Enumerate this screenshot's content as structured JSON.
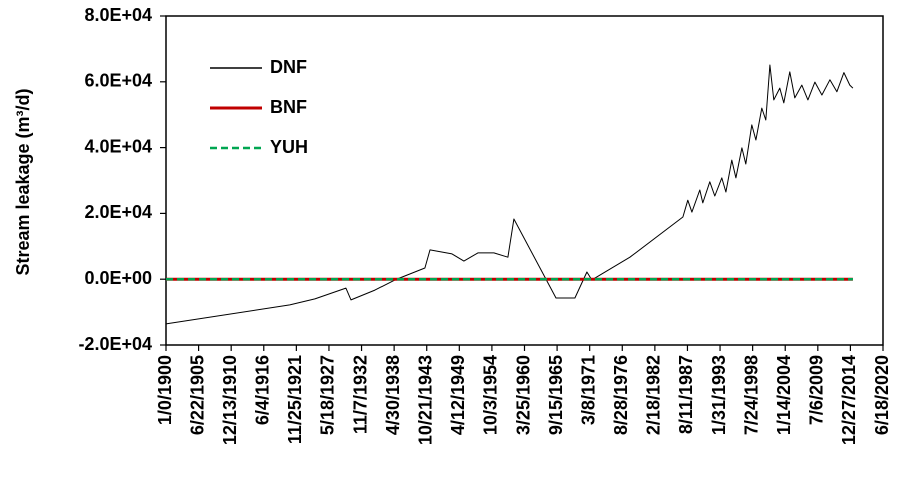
{
  "chart_data": {
    "type": "line",
    "y_label": "Stream leakage (m³/d)",
    "xlim": [
      0,
      44000
    ],
    "xticks": [
      {
        "value": 0,
        "label": "1/0/1900"
      },
      {
        "value": 2000,
        "label": "6/22/1905"
      },
      {
        "value": 4000,
        "label": "12/13/1910"
      },
      {
        "value": 6000,
        "label": "6/4/1916"
      },
      {
        "value": 8000,
        "label": "11/25/1921"
      },
      {
        "value": 10000,
        "label": "5/18/1927"
      },
      {
        "value": 12000,
        "label": "11/7/1932"
      },
      {
        "value": 14000,
        "label": "4/30/1938"
      },
      {
        "value": 16000,
        "label": "10/21/1943"
      },
      {
        "value": 18000,
        "label": "4/12/1949"
      },
      {
        "value": 20000,
        "label": "10/3/1954"
      },
      {
        "value": 22000,
        "label": "3/25/1960"
      },
      {
        "value": 24000,
        "label": "9/15/1965"
      },
      {
        "value": 26000,
        "label": "3/8/1971"
      },
      {
        "value": 28000,
        "label": "8/28/1976"
      },
      {
        "value": 30000,
        "label": "2/18/1982"
      },
      {
        "value": 32000,
        "label": "8/11/1987"
      },
      {
        "value": 34000,
        "label": "1/31/1993"
      },
      {
        "value": 36000,
        "label": "7/24/1998"
      },
      {
        "value": 38000,
        "label": "1/14/2004"
      },
      {
        "value": 40000,
        "label": "7/6/2009"
      },
      {
        "value": 42000,
        "label": "12/27/2014"
      },
      {
        "value": 44000,
        "label": "6/18/2020"
      }
    ],
    "ylim": [
      -20000,
      80000
    ],
    "yticks": [
      {
        "value": -20000,
        "label": "-2.0E+04"
      },
      {
        "value": 0,
        "label": "0.0E+00"
      },
      {
        "value": 20000,
        "label": "2.0E+04"
      },
      {
        "value": 40000,
        "label": "4.0E+04"
      },
      {
        "value": 60000,
        "label": "6.0E+04"
      },
      {
        "value": 80000,
        "label": "8.0E+04"
      }
    ],
    "legend": "upper left",
    "series": [
      {
        "name": "DNF",
        "color": "#000000",
        "linestyle": "solid",
        "width": 1,
        "x": [
          0,
          7600,
          9140,
          11040,
          11350,
          12820,
          14050,
          15890,
          16200,
          17550,
          18280,
          19140,
          20120,
          20980,
          21350,
          23930,
          25090,
          25830,
          26130,
          28470,
          31720,
          32020,
          32270,
          32760,
          32940,
          33370,
          33680,
          34110,
          34360,
          34720,
          34970,
          35340,
          35580,
          35950,
          36200,
          36560,
          36810,
          37060,
          37300,
          37670,
          37910,
          38280,
          38590,
          39020,
          39390,
          39820,
          40250,
          40740,
          41170,
          41600,
          41960,
          42150
        ],
        "values": [
          -13600,
          -7800,
          -6000,
          -2700,
          -6300,
          -3300,
          -200,
          3400,
          8900,
          7700,
          5500,
          8000,
          8000,
          6700,
          18300,
          -5700,
          -5700,
          2200,
          -200,
          6700,
          18900,
          24000,
          20400,
          27100,
          23200,
          29600,
          25300,
          30800,
          26500,
          36200,
          30800,
          39900,
          35000,
          46900,
          42300,
          52000,
          48400,
          65100,
          54500,
          58100,
          53600,
          63000,
          55100,
          59000,
          54500,
          59900,
          56000,
          60600,
          57000,
          62800,
          59000,
          58100
        ]
      },
      {
        "name": "BNF",
        "color": "#c00000",
        "linestyle": "solid",
        "width": 3,
        "x": [
          0,
          42150
        ],
        "values": [
          0,
          0
        ]
      },
      {
        "name": "YUH",
        "color": "#00a651",
        "linestyle": "dashed",
        "width": 2.5,
        "x": [
          0,
          42150
        ],
        "values": [
          0,
          0
        ]
      }
    ]
  }
}
